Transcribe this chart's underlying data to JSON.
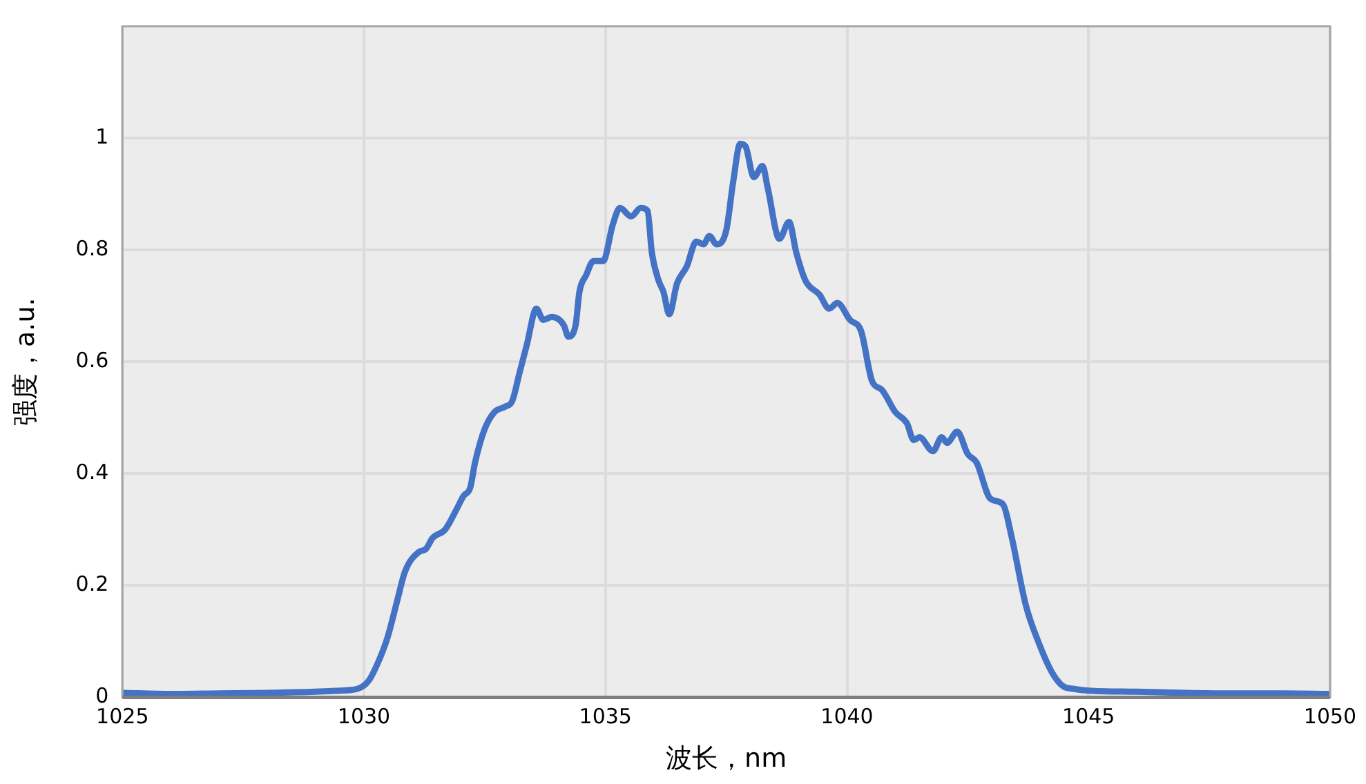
{
  "chart_data": {
    "type": "line",
    "xlabel": "波长，nm",
    "ylabel": "强度，a.u.",
    "xlim": [
      1025,
      1050
    ],
    "xticks": [
      1025,
      1030,
      1035,
      1040,
      1045,
      1050
    ],
    "ylim": [
      0,
      1.2
    ],
    "yticks": [
      0,
      0.2,
      0.4,
      0.6,
      0.8,
      1
    ],
    "grid": true,
    "legend": false,
    "marker": "none",
    "line_style": "solid",
    "series": [
      {
        "color": "#4472c4",
        "x": [
          1025,
          1026,
          1027,
          1028,
          1029,
          1029.5,
          1029.86,
          1030.1,
          1030.28,
          1030.48,
          1030.68,
          1030.85,
          1031.14,
          1031.28,
          1031.42,
          1031.68,
          1031.91,
          1032.06,
          1032.2,
          1032.3,
          1032.5,
          1032.7,
          1032.93,
          1033.07,
          1033.22,
          1033.37,
          1033.57,
          1033.71,
          1033.89,
          1034.14,
          1034.23,
          1034.38,
          1034.46,
          1034.6,
          1034.75,
          1034.95,
          1035.15,
          1035.3,
          1035.53,
          1035.73,
          1035.87,
          1035.96,
          1036.1,
          1036.2,
          1036.32,
          1036.48,
          1036.68,
          1036.88,
          1037.03,
          1037.15,
          1037.3,
          1037.5,
          1037.64,
          1037.79,
          1037.9,
          1038.07,
          1038.25,
          1038.36,
          1038.6,
          1038.8,
          1038.95,
          1039.14,
          1039.43,
          1039.63,
          1039.8,
          1040.06,
          1040.29,
          1040.52,
          1040.72,
          1041,
          1041.24,
          1041.38,
          1041.5,
          1041.78,
          1041.96,
          1042.07,
          1042.28,
          1042.5,
          1042.68,
          1042.97,
          1043.23,
          1043.4,
          1043.7,
          1043.98,
          1044.24,
          1044.47,
          1044.7,
          1045,
          1046,
          1047,
          1048,
          1049,
          1050
        ],
        "values": [
          0.008,
          0.006,
          0.007,
          0.008,
          0.01,
          0.012,
          0.015,
          0.03,
          0.06,
          0.105,
          0.17,
          0.225,
          0.26,
          0.265,
          0.285,
          0.3,
          0.335,
          0.36,
          0.375,
          0.42,
          0.48,
          0.51,
          0.52,
          0.53,
          0.58,
          0.63,
          0.695,
          0.675,
          0.68,
          0.665,
          0.645,
          0.665,
          0.725,
          0.755,
          0.78,
          0.78,
          0.845,
          0.875,
          0.86,
          0.875,
          0.87,
          0.795,
          0.745,
          0.725,
          0.685,
          0.74,
          0.77,
          0.815,
          0.81,
          0.825,
          0.81,
          0.835,
          0.92,
          0.99,
          0.985,
          0.93,
          0.95,
          0.91,
          0.82,
          0.85,
          0.795,
          0.745,
          0.72,
          0.695,
          0.705,
          0.675,
          0.655,
          0.565,
          0.55,
          0.51,
          0.49,
          0.46,
          0.465,
          0.44,
          0.465,
          0.455,
          0.475,
          0.435,
          0.42,
          0.355,
          0.345,
          0.29,
          0.165,
          0.095,
          0.045,
          0.02,
          0.015,
          0.012,
          0.01,
          0.008,
          0.007,
          0.007,
          0.006
        ]
      }
    ]
  }
}
